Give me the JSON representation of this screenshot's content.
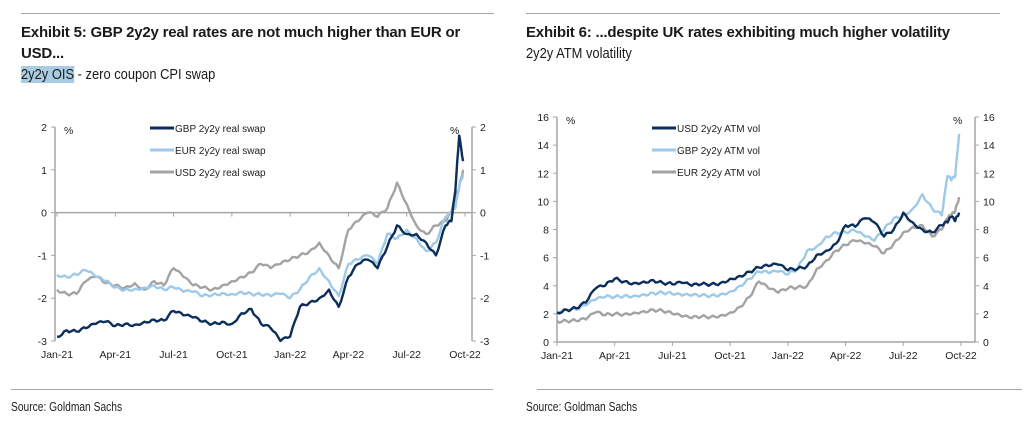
{
  "chart_data": [
    {
      "type": "line",
      "title": "Exhibit 5: GBP 2y2y real rates are not much higher than EUR or USD...",
      "subtitle_highlight": "2y2y OIS",
      "subtitle_rest": " - zero coupon CPI swap",
      "source": "Source: Goldman Sachs",
      "ylabel_left": "%",
      "ylabel_right": "%",
      "ylim": [
        -3,
        2
      ],
      "yticks": [
        "2",
        "1",
        "0",
        "-1",
        "-2",
        "-3"
      ],
      "xticks": [
        "Jan-21",
        "Apr-21",
        "Jul-21",
        "Oct-21",
        "Jan-22",
        "Apr-22",
        "Jul-22",
        "Oct-22"
      ],
      "xrange_months": [
        0,
        21
      ],
      "legend_position": "top-right",
      "x_months": [
        0,
        0.5,
        1,
        1.5,
        2,
        2.5,
        3,
        3.5,
        4,
        4.5,
        5,
        5.5,
        6,
        6.5,
        7,
        7.5,
        8,
        8.5,
        9,
        9.5,
        10,
        10.5,
        11,
        11.5,
        12,
        12.5,
        13,
        13.5,
        14,
        14.5,
        15,
        15.5,
        16,
        16.5,
        17,
        17.5,
        18,
        18.5,
        19,
        19.5,
        20,
        20.3,
        20.5,
        20.7,
        20.9
      ],
      "series": [
        {
          "name": "GBP 2y2y real swap",
          "color": "#0b2f5a",
          "values": [
            -2.9,
            -2.75,
            -2.78,
            -2.7,
            -2.6,
            -2.55,
            -2.65,
            -2.6,
            -2.62,
            -2.55,
            -2.5,
            -2.52,
            -2.3,
            -2.4,
            -2.45,
            -2.55,
            -2.6,
            -2.55,
            -2.6,
            -2.35,
            -2.25,
            -2.6,
            -2.7,
            -3.0,
            -2.9,
            -2.2,
            -2.1,
            -2.0,
            -1.8,
            -2.2,
            -1.5,
            -1.2,
            -1.1,
            -1.3,
            -0.8,
            -0.3,
            -0.5,
            -0.5,
            -0.7,
            -1.0,
            -0.3,
            -0.2,
            0.5,
            1.8,
            1.2
          ]
        },
        {
          "name": "EUR 2y2y real swap",
          "color": "#9ecae8",
          "values": [
            -1.45,
            -1.5,
            -1.45,
            -1.35,
            -1.5,
            -1.6,
            -1.75,
            -1.8,
            -1.78,
            -1.75,
            -1.7,
            -1.8,
            -1.75,
            -1.85,
            -1.85,
            -1.95,
            -1.92,
            -1.88,
            -1.9,
            -1.85,
            -1.9,
            -1.92,
            -1.95,
            -1.9,
            -2.0,
            -1.8,
            -1.5,
            -1.3,
            -1.6,
            -1.95,
            -1.2,
            -1.1,
            -1.0,
            -1.2,
            -0.5,
            -0.6,
            -0.4,
            -0.6,
            -0.9,
            -0.7,
            -0.1,
            0.0,
            0.1,
            0.6,
            0.9
          ]
        },
        {
          "name": "USD 2y2y real swap",
          "color": "#a3a3a3",
          "values": [
            -1.8,
            -1.9,
            -1.9,
            -1.6,
            -1.5,
            -1.65,
            -1.7,
            -1.75,
            -1.65,
            -1.8,
            -1.6,
            -1.7,
            -1.3,
            -1.5,
            -1.7,
            -1.75,
            -1.8,
            -1.7,
            -1.6,
            -1.5,
            -1.4,
            -1.2,
            -1.3,
            -1.2,
            -1.1,
            -1.0,
            -0.9,
            -0.7,
            -1.0,
            -1.3,
            -0.4,
            -0.2,
            0.0,
            -0.1,
            0.1,
            0.7,
            0.2,
            -0.3,
            -0.5,
            -0.3,
            -0.2,
            0.0,
            0.3,
            0.6,
            1.0
          ]
        }
      ]
    },
    {
      "type": "line",
      "title": "Exhibit 6: ...despite UK rates exhibiting much higher volatility",
      "subtitle": "2y2y ATM volatility",
      "source": "Source: Goldman Sachs",
      "ylabel_left": "%",
      "ylabel_right": "%",
      "ylim": [
        0,
        16
      ],
      "yticks": [
        "16",
        "14",
        "12",
        "10",
        "8",
        "6",
        "4",
        "2",
        "0"
      ],
      "xticks": [
        "Jan-21",
        "Apr-21",
        "Jul-21",
        "Oct-21",
        "Jan-22",
        "Apr-22",
        "Jul-22",
        "Oct-22"
      ],
      "xrange_months": [
        0,
        21
      ],
      "legend_position": "top-right",
      "x_months": [
        0,
        0.5,
        1,
        1.5,
        2,
        2.5,
        3,
        3.5,
        4,
        4.5,
        5,
        5.5,
        6,
        6.5,
        7,
        7.5,
        8,
        8.5,
        9,
        9.5,
        10,
        10.5,
        11,
        11.5,
        12,
        12.5,
        13,
        13.5,
        14,
        14.5,
        15,
        15.5,
        16,
        16.5,
        17,
        17.5,
        18,
        18.5,
        19,
        19.5,
        20,
        20.3,
        20.5,
        20.7,
        20.9
      ],
      "series": [
        {
          "name": "USD 2y2y ATM vol",
          "color": "#0b2f5a",
          "values": [
            2.1,
            2.3,
            2.4,
            2.8,
            3.8,
            4.0,
            4.5,
            4.3,
            4.2,
            4.3,
            4.4,
            4.2,
            4.1,
            4.2,
            4.0,
            4.1,
            4.1,
            4.2,
            4.5,
            4.7,
            5.0,
            5.3,
            5.4,
            5.5,
            5.1,
            5.2,
            5.4,
            6.2,
            6.5,
            7.0,
            8.3,
            8.2,
            8.8,
            8.5,
            7.5,
            8.0,
            9.2,
            8.5,
            8.0,
            7.8,
            8.3,
            8.5,
            8.9,
            8.6,
            9.2
          ]
        },
        {
          "name": "GBP 2y2y ATM vol",
          "color": "#9ecae8",
          "values": [
            2.2,
            2.3,
            2.3,
            2.6,
            3.0,
            3.2,
            3.2,
            3.3,
            3.3,
            3.4,
            3.5,
            3.5,
            3.4,
            3.3,
            3.3,
            3.3,
            3.3,
            3.4,
            3.6,
            4.0,
            4.5,
            5.0,
            4.9,
            5.0,
            4.8,
            5.2,
            6.5,
            6.8,
            7.5,
            7.8,
            7.8,
            7.9,
            7.5,
            7.2,
            8.0,
            8.8,
            9.0,
            9.5,
            10.5,
            9.5,
            9.0,
            11.8,
            11.5,
            11.8,
            14.8
          ]
        },
        {
          "name": "EUR 2y2y ATM vol",
          "color": "#a3a3a3",
          "values": [
            1.5,
            1.5,
            1.5,
            1.6,
            2.1,
            1.9,
            2.0,
            2.0,
            2.1,
            2.2,
            2.3,
            2.2,
            2.0,
            1.8,
            1.7,
            1.8,
            1.8,
            1.9,
            2.1,
            2.5,
            3.2,
            4.3,
            3.8,
            3.5,
            3.8,
            3.9,
            4.0,
            5.2,
            5.8,
            6.5,
            6.9,
            7.2,
            7.0,
            6.8,
            6.3,
            7.0,
            7.8,
            8.2,
            8.3,
            7.5,
            8.0,
            8.8,
            9.0,
            9.3,
            10.3
          ]
        }
      ]
    }
  ]
}
